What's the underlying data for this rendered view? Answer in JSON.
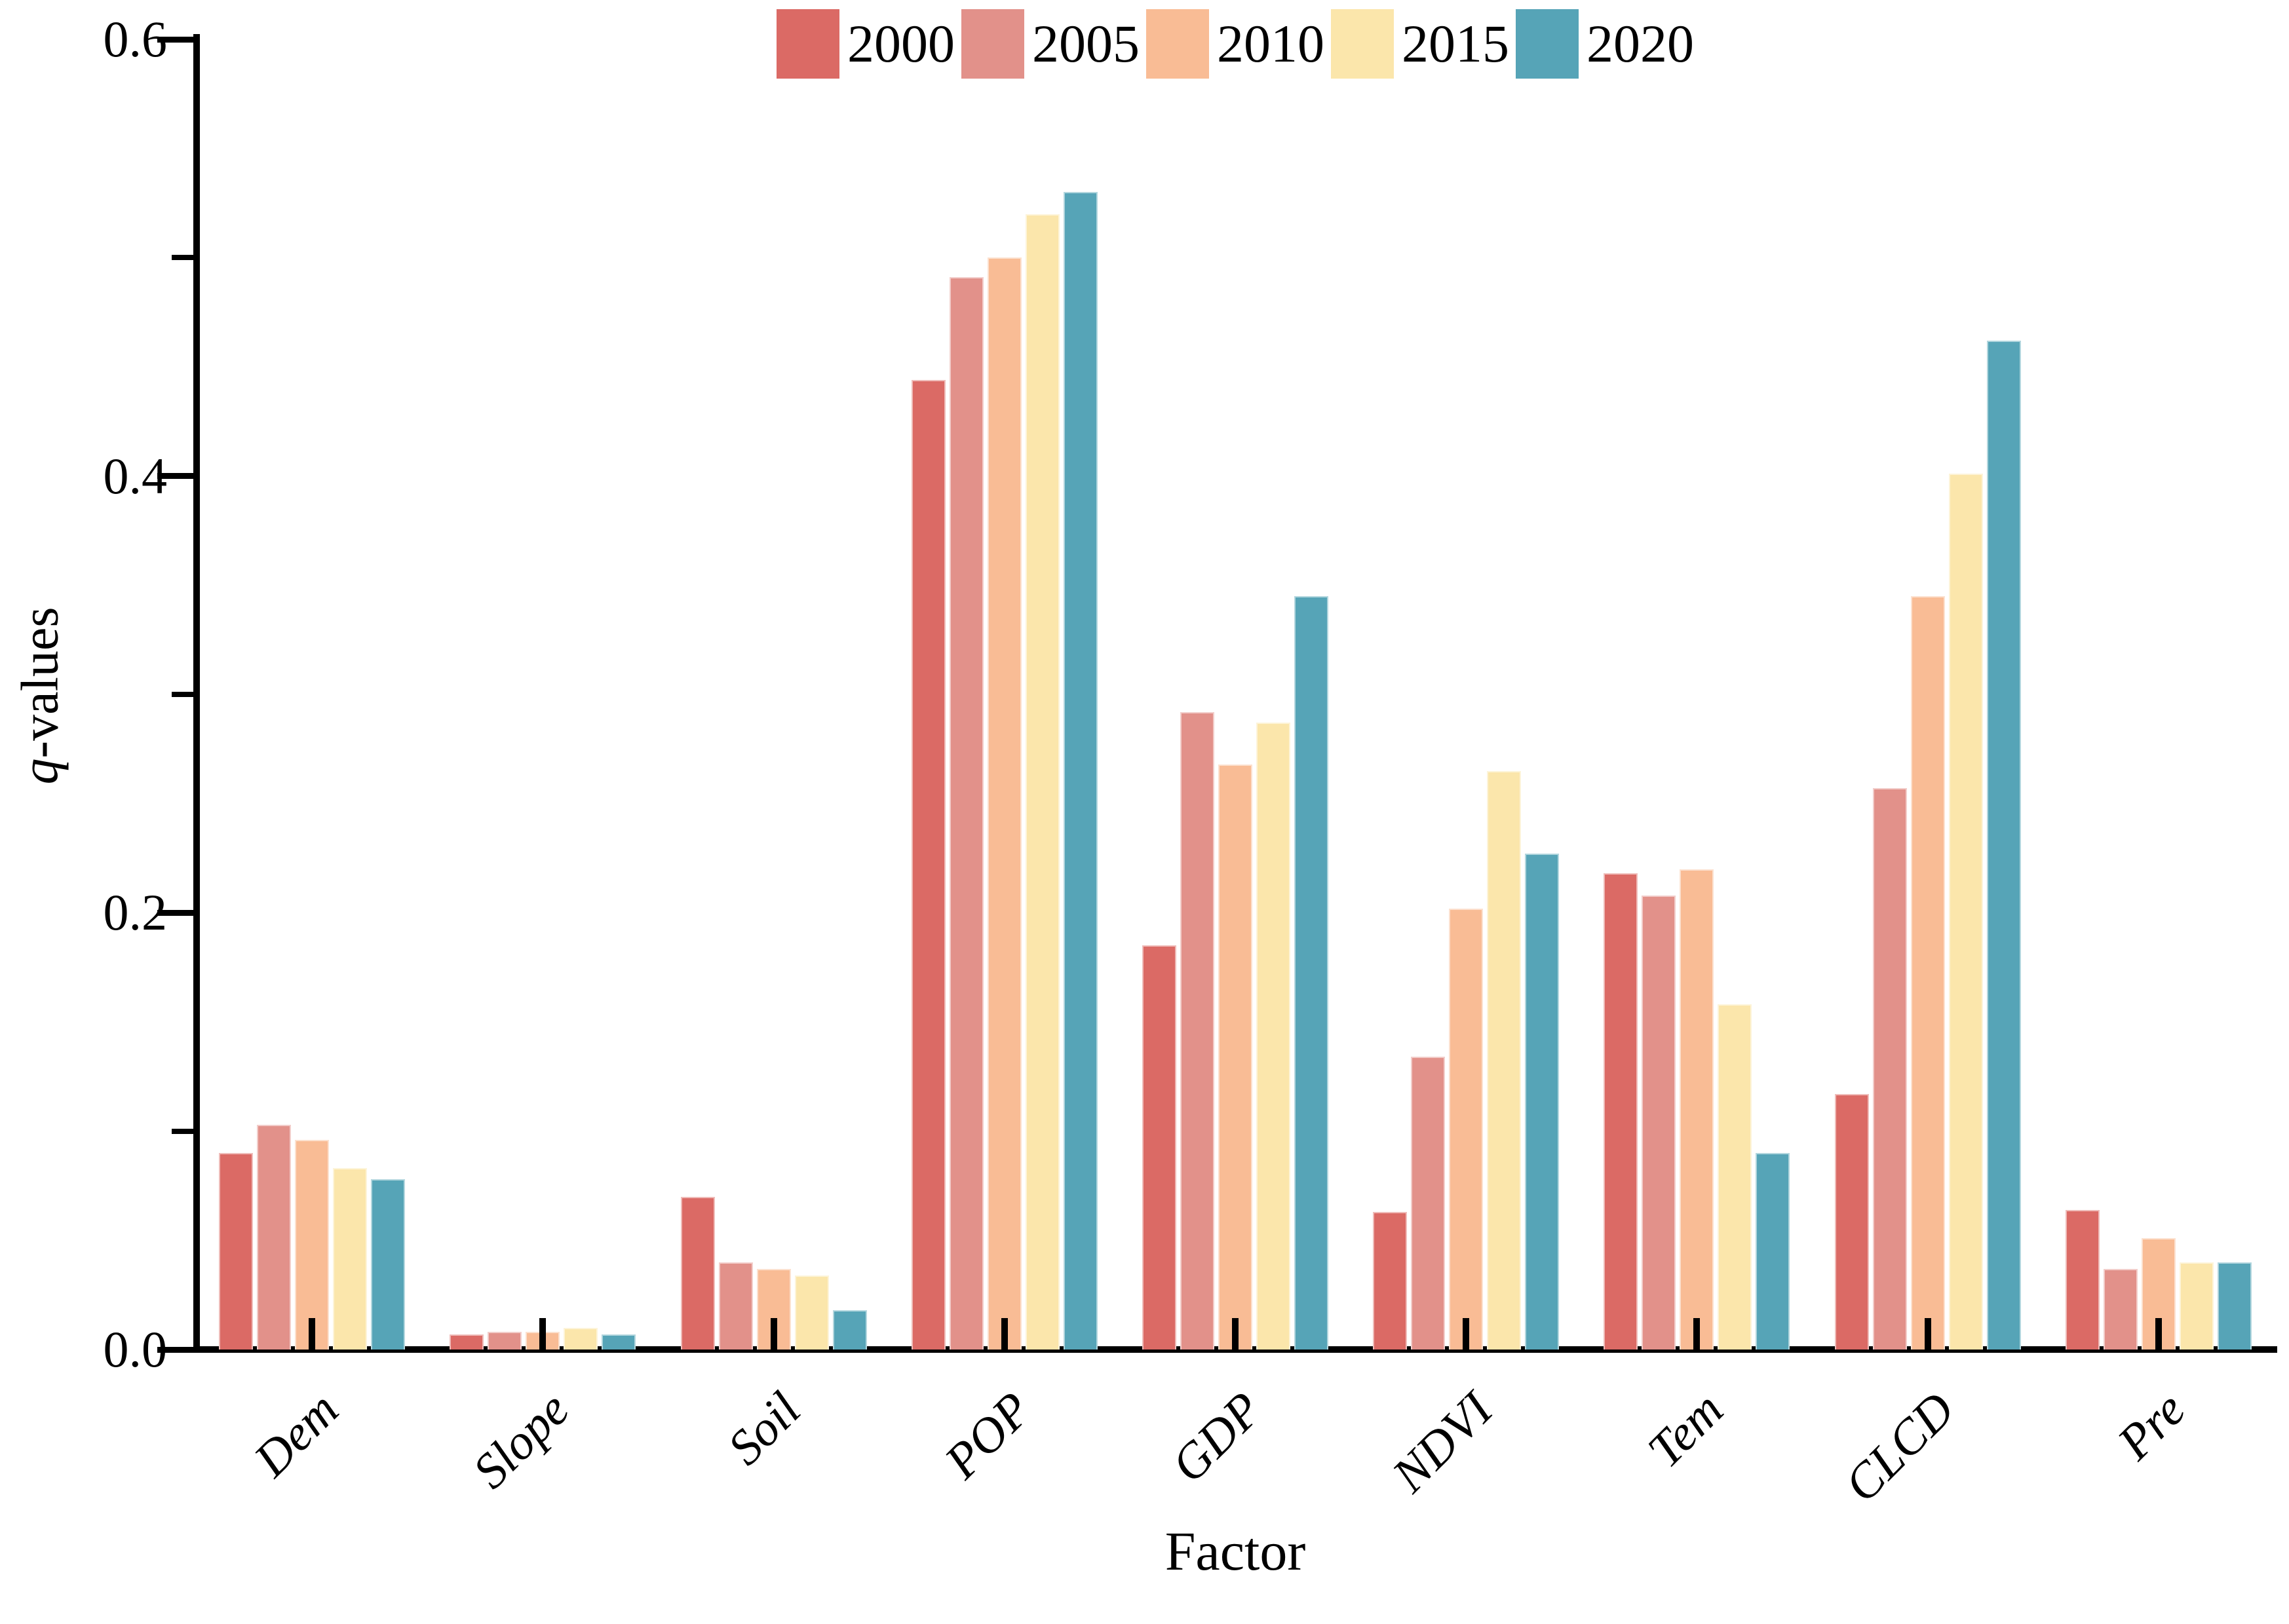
{
  "labels": {
    "xlabel": "Factor",
    "ylabel_italic": "q",
    "ylabel_rest": "-values"
  },
  "axis": {
    "ylim": [
      0,
      0.6
    ],
    "y_major_ticks": [
      {
        "value": 0.0,
        "label": "0.0"
      },
      {
        "value": 0.2,
        "label": "0.2"
      },
      {
        "value": 0.4,
        "label": "0.4"
      },
      {
        "value": 0.6,
        "label": "0.6"
      }
    ],
    "y_minor_ticks": [
      0.1,
      0.3,
      0.5
    ]
  },
  "chart_data": {
    "type": "bar",
    "title": "",
    "xlabel": "Factor",
    "ylabel": "q-values",
    "ylim": [
      0,
      0.6
    ],
    "yticks": [
      0.0,
      0.2,
      0.4,
      0.6
    ],
    "grid": false,
    "legend_position": "top-center",
    "categories": [
      "Dem",
      "Slope",
      "Soil",
      "POP",
      "GDP",
      "NDVI",
      "Tem",
      "CLCD",
      "Pre"
    ],
    "series": [
      {
        "name": "2000",
        "color": "#DB6A65",
        "values": [
          0.09,
          0.007,
          0.07,
          0.444,
          0.185,
          0.063,
          0.218,
          0.117,
          0.064
        ]
      },
      {
        "name": "2005",
        "color": "#E2918A",
        "values": [
          0.103,
          0.008,
          0.04,
          0.491,
          0.292,
          0.134,
          0.208,
          0.257,
          0.037
        ]
      },
      {
        "name": "2010",
        "color": "#F9BC95",
        "values": [
          0.096,
          0.008,
          0.037,
          0.5,
          0.268,
          0.202,
          0.22,
          0.345,
          0.051
        ]
      },
      {
        "name": "2015",
        "color": "#FBE6AB",
        "values": [
          0.083,
          0.01,
          0.034,
          0.52,
          0.287,
          0.265,
          0.158,
          0.401,
          0.04
        ]
      },
      {
        "name": "2020",
        "color": "#56A4B7",
        "values": [
          0.078,
          0.007,
          0.018,
          0.53,
          0.345,
          0.227,
          0.09,
          0.462,
          0.04
        ]
      }
    ]
  }
}
